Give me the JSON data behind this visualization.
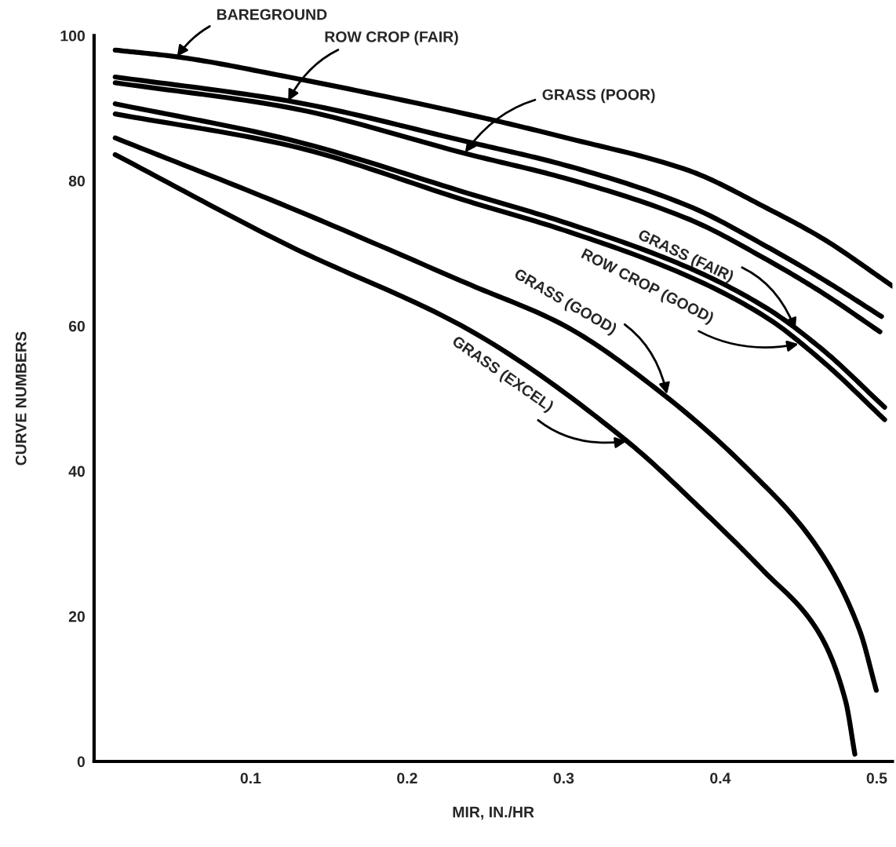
{
  "chart_data": {
    "type": "line",
    "xlabel": "MIR, IN./HR",
    "ylabel": "CURVE NUMBERS",
    "xlim": [
      0,
      0.51
    ],
    "ylim": [
      0,
      100
    ],
    "xticks": [
      {
        "value": 0,
        "label": null
      },
      0.1,
      0.2,
      0.3,
      0.4,
      0.5
    ],
    "yticks": [
      0,
      20,
      40,
      60,
      80,
      100
    ],
    "grid": false,
    "legend": false,
    "marker": "none",
    "line_style": "solid",
    "series": [
      {
        "color": "#000000",
        "x": [
          0.0135,
          0.052,
          0.124,
          0.25,
          0.3,
          0.38,
          0.43,
          0.465,
          0.51
        ],
        "values": [
          98,
          97.1,
          94.3,
          88.6,
          86.0,
          81.4,
          76.2,
          72.1,
          65.5
        ]
      },
      {
        "color": "#000000",
        "x": [
          0.0135,
          0.124,
          0.24,
          0.3,
          0.38,
          0.43,
          0.465,
          0.503
        ],
        "values": [
          94.3,
          91.0,
          85.3,
          82.2,
          76.5,
          70.9,
          66.5,
          61.3
        ]
      },
      {
        "color": "#000000",
        "x": [
          0.0135,
          0.124,
          0.24,
          0.3,
          0.38,
          0.43,
          0.465,
          0.502
        ],
        "values": [
          93.5,
          90.1,
          83.6,
          80.4,
          74.7,
          69.1,
          64.6,
          59.2
        ]
      },
      {
        "color": "#000000",
        "x": [
          0.0135,
          0.124,
          0.24,
          0.3,
          0.38,
          0.43,
          0.465,
          0.505
        ],
        "values": [
          90.6,
          85.7,
          78.2,
          74.3,
          68.0,
          62.4,
          56.8,
          48.8
        ]
      },
      {
        "color": "#000000",
        "x": [
          0.0135,
          0.124,
          0.24,
          0.3,
          0.38,
          0.43,
          0.465,
          0.505
        ],
        "values": [
          89.2,
          84.9,
          77.1,
          73.2,
          66.8,
          61.1,
          55.2,
          47.1
        ]
      },
      {
        "color": "#000000",
        "x": [
          0.0135,
          0.124,
          0.24,
          0.3,
          0.364,
          0.418,
          0.462,
          0.489,
          0.4997
        ],
        "values": [
          85.9,
          76.4,
          65.7,
          60.1,
          50.5,
          40.2,
          29.5,
          18.1,
          9.8
        ]
      },
      {
        "color": "#000000",
        "x": [
          0.0135,
          0.124,
          0.24,
          0.34,
          0.391,
          0.427,
          0.462,
          0.48,
          0.486
        ],
        "values": [
          83.6,
          71.1,
          59.4,
          44.2,
          34.1,
          26.4,
          18.1,
          8.4,
          1.0
        ]
      }
    ],
    "annotations": [
      {
        "text": "BAREGROUND",
        "x": 0.053,
        "y": 97.1
      },
      {
        "text": "ROW CROP (FAIR)",
        "x": 0.124,
        "y": 91.0
      },
      {
        "text": "GRASS (POOR)",
        "x": 0.237,
        "y": 83.9
      },
      {
        "text": "GRASS (FAIR)",
        "x": 0.448,
        "y": 59.5
      },
      {
        "text": "ROW CROP (GOOD)",
        "x": 0.45,
        "y": 57.5
      },
      {
        "text": "GRASS (GOOD)",
        "x": 0.366,
        "y": 50.6
      },
      {
        "text": "GRASS (EXCEL)",
        "x": 0.34,
        "y": 44.1
      }
    ]
  }
}
